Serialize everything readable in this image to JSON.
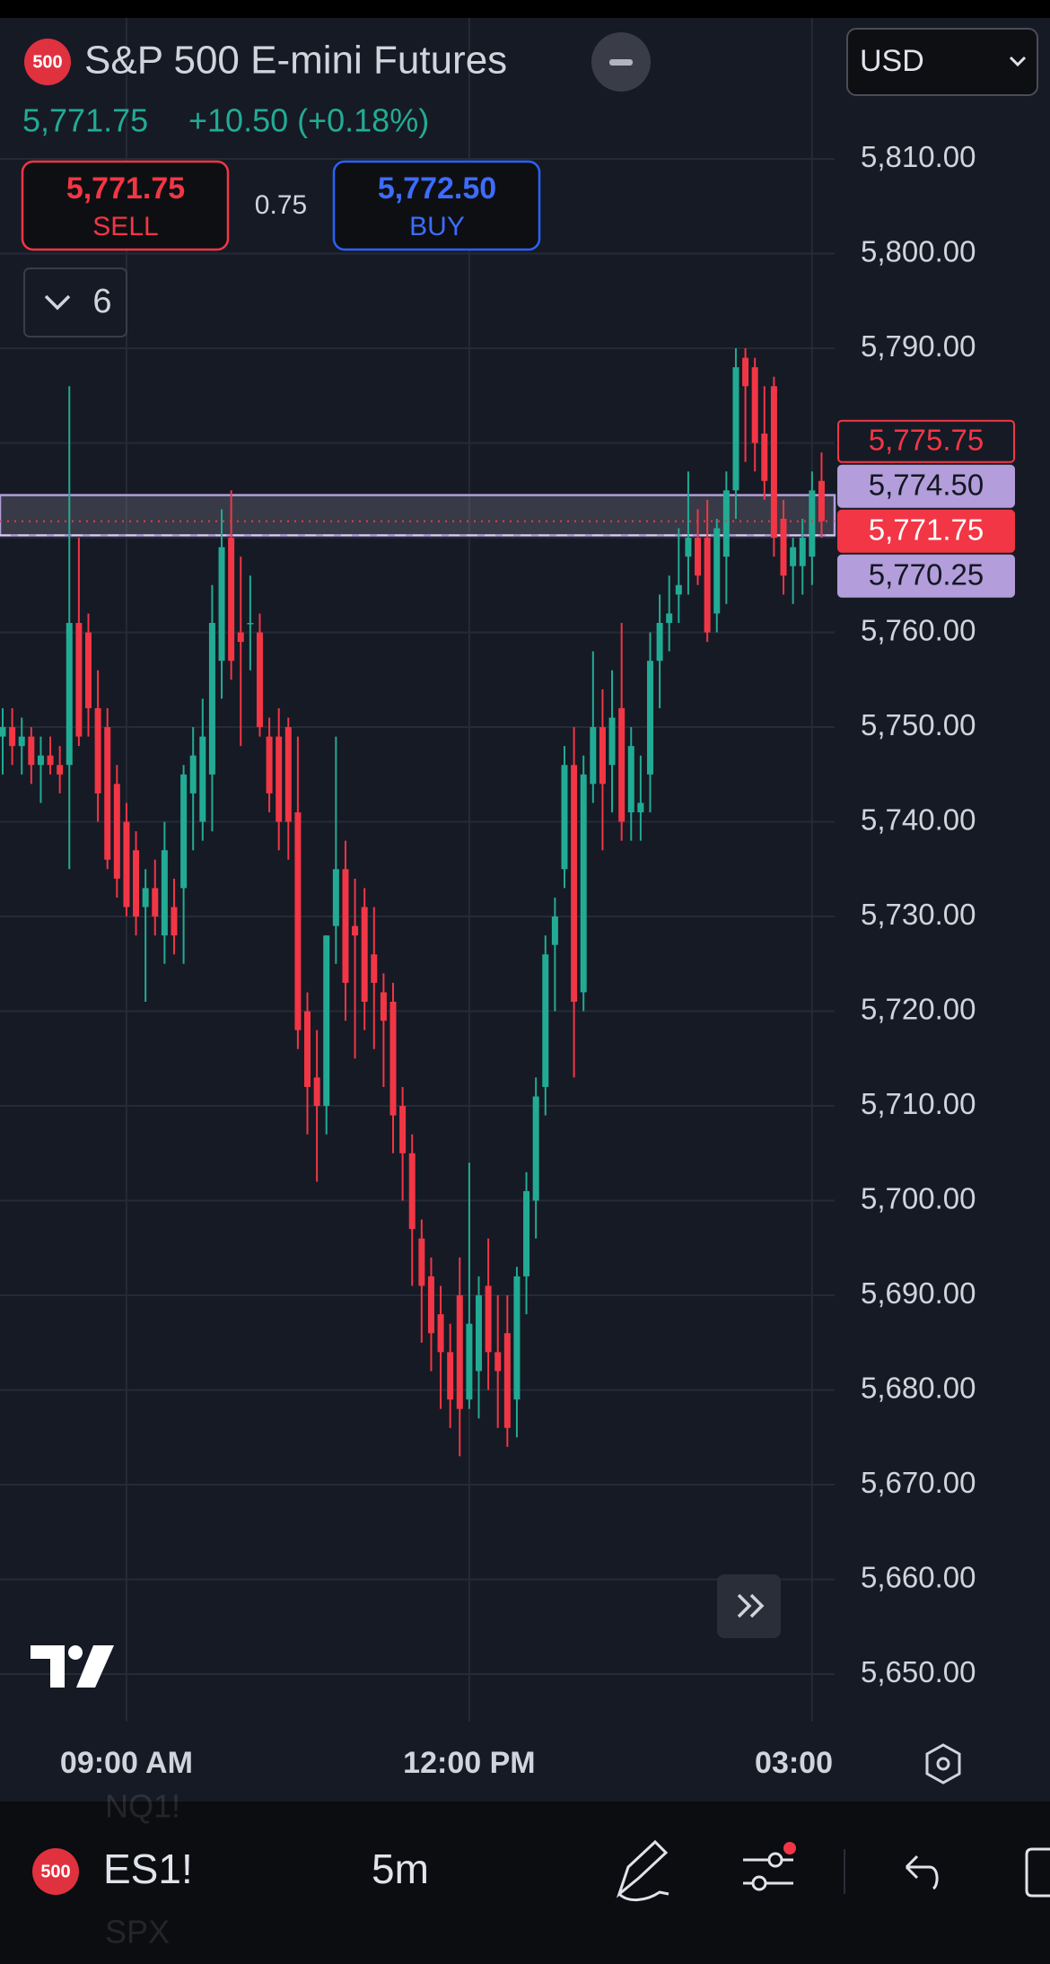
{
  "ui": {
    "symbol_badge": "500",
    "title": "S&P 500 E-mini Futures",
    "last_price": "5,771.75",
    "change": "+10.50 (+0.18%)",
    "currency": "USD",
    "sell_price": "5,771.75",
    "sell_label": "SELL",
    "spread": "0.75",
    "buy_price": "5,772.50",
    "buy_label": "BUY",
    "indicator_count": "6",
    "bottom_badge": "500",
    "ticker": "ES1!",
    "interval": "5m",
    "watchlist_above": "NQ1!",
    "watchlist_below": "SPX"
  },
  "chart_data": {
    "type": "candlestick",
    "up_color": "#22ab94",
    "down_color": "#f23645",
    "grid": true,
    "categories": [
      null,
      null,
      null,
      null,
      null,
      null,
      null,
      null,
      null,
      null,
      null,
      null,
      null,
      "09:00 AM",
      null,
      null,
      null,
      null,
      null,
      null,
      null,
      null,
      null,
      null,
      null,
      null,
      null,
      null,
      null,
      null,
      null,
      null,
      null,
      null,
      null,
      null,
      null,
      null,
      null,
      null,
      null,
      null,
      null,
      null,
      null,
      null,
      null,
      null,
      null,
      "12:00 PM",
      null,
      null,
      null,
      null,
      null,
      null,
      null,
      null,
      null,
      null,
      null,
      null,
      null,
      null,
      null,
      null,
      null,
      null,
      null,
      null,
      null,
      null,
      null,
      null,
      null,
      null,
      null,
      null,
      null,
      null,
      null,
      null,
      null,
      null,
      null,
      "03:00",
      null
    ],
    "ohlc": [
      [
        5749,
        5752,
        5745,
        5750
      ],
      [
        5750,
        5752,
        5746,
        5748
      ],
      [
        5748,
        5751,
        5745,
        5749
      ],
      [
        5749,
        5750,
        5744,
        5746
      ],
      [
        5746,
        5749,
        5742,
        5747
      ],
      [
        5747,
        5749,
        5745,
        5746
      ],
      [
        5746,
        5748,
        5743,
        5745
      ],
      [
        5746,
        5786,
        5735,
        5761
      ],
      [
        5761,
        5770,
        5748,
        5749
      ],
      [
        5760,
        5762,
        5749,
        5752
      ],
      [
        5752,
        5756,
        5740,
        5743
      ],
      [
        5750,
        5752,
        5735,
        5736
      ],
      [
        5744,
        5746,
        5732,
        5734
      ],
      [
        5740,
        5742,
        5730,
        5731
      ],
      [
        5737,
        5739,
        5728,
        5730
      ],
      [
        5731,
        5735,
        5721,
        5733
      ],
      [
        5733,
        5736,
        5728,
        5730
      ],
      [
        5728,
        5740,
        5725,
        5737
      ],
      [
        5731,
        5734,
        5726,
        5728
      ],
      [
        5733,
        5746,
        5725,
        5745
      ],
      [
        5743,
        5750,
        5737,
        5747
      ],
      [
        5740,
        5753,
        5738,
        5749
      ],
      [
        5745,
        5765,
        5739,
        5761
      ],
      [
        5757,
        5773,
        5753,
        5769
      ],
      [
        5770,
        5775,
        5755,
        5757
      ],
      [
        5760,
        5768,
        5748,
        5759
      ],
      [
        5761,
        5766,
        5756,
        5761
      ],
      [
        5760,
        5762,
        5749,
        5750
      ],
      [
        5749,
        5751,
        5741,
        5743
      ],
      [
        5749,
        5752,
        5737,
        5740
      ],
      [
        5750,
        5751,
        5736,
        5740
      ],
      [
        5741,
        5749,
        5716,
        5718
      ],
      [
        5720,
        5722,
        5707,
        5712
      ],
      [
        5713,
        5718,
        5702,
        5710
      ],
      [
        5710,
        5728,
        5707,
        5728
      ],
      [
        5729,
        5749,
        5725,
        5735
      ],
      [
        5735,
        5738,
        5719,
        5723
      ],
      [
        5729,
        5734,
        5715,
        5728
      ],
      [
        5731,
        5733,
        5718,
        5721
      ],
      [
        5726,
        5731,
        5716,
        5723
      ],
      [
        5722,
        5724,
        5712,
        5719
      ],
      [
        5721,
        5723,
        5705,
        5709
      ],
      [
        5710,
        5712,
        5700,
        5705
      ],
      [
        5705,
        5707,
        5691,
        5697
      ],
      [
        5696,
        5698,
        5685,
        5691
      ],
      [
        5692,
        5694,
        5682,
        5686
      ],
      [
        5688,
        5691,
        5678,
        5684
      ],
      [
        5684,
        5687,
        5676,
        5679
      ],
      [
        5690,
        5694,
        5673,
        5678
      ],
      [
        5679,
        5704,
        5678,
        5687
      ],
      [
        5682,
        5692,
        5677,
        5690
      ],
      [
        5691,
        5696,
        5680,
        5684
      ],
      [
        5684,
        5690,
        5676,
        5682
      ],
      [
        5686,
        5690,
        5674,
        5676
      ],
      [
        5679,
        5693,
        5675,
        5692
      ],
      [
        5692,
        5703,
        5688,
        5701
      ],
      [
        5700,
        5713,
        5696,
        5711
      ],
      [
        5712,
        5728,
        5709,
        5726
      ],
      [
        5727,
        5732,
        5720,
        5730
      ],
      [
        5735,
        5748,
        5733,
        5746
      ],
      [
        5746,
        5750,
        5713,
        5721
      ],
      [
        5722,
        5747,
        5720,
        5745
      ],
      [
        5744,
        5758,
        5742,
        5750
      ],
      [
        5750,
        5754,
        5737,
        5744
      ],
      [
        5746,
        5756,
        5741,
        5751
      ],
      [
        5752,
        5761,
        5738,
        5740
      ],
      [
        5741,
        5750,
        5738,
        5748
      ],
      [
        5741,
        5747,
        5738,
        5742
      ],
      [
        5745,
        5760,
        5741,
        5757
      ],
      [
        5757,
        5764,
        5752,
        5761
      ],
      [
        5761,
        5766,
        5758,
        5762
      ],
      [
        5764,
        5771,
        5761,
        5765
      ],
      [
        5768,
        5777,
        5764,
        5770
      ],
      [
        5770,
        5773,
        5765,
        5766
      ],
      [
        5770,
        5774,
        5759,
        5760
      ],
      [
        5762,
        5772,
        5760,
        5771
      ],
      [
        5768,
        5777,
        5763,
        5775
      ],
      [
        5775,
        5790,
        5772,
        5788
      ],
      [
        5789,
        5790,
        5778,
        5786
      ],
      [
        5788,
        5789,
        5777,
        5780
      ],
      [
        5781,
        5786,
        5774,
        5776
      ],
      [
        5786,
        5787,
        5768,
        5770
      ],
      [
        5772,
        5774,
        5764,
        5766
      ],
      [
        5767,
        5770,
        5763,
        5769
      ],
      [
        5767,
        5772,
        5764,
        5770
      ],
      [
        5768,
        5777,
        5765,
        5775
      ],
      [
        5776,
        5779,
        5770,
        5771.75
      ]
    ],
    "ylim": [
      5645,
      5825
    ],
    "yticks": [
      {
        "value": 5650,
        "label": "5,650.00"
      },
      {
        "value": 5660,
        "label": "5,660.00"
      },
      {
        "value": 5670,
        "label": "5,670.00"
      },
      {
        "value": 5680,
        "label": "5,680.00"
      },
      {
        "value": 5690,
        "label": "5,690.00"
      },
      {
        "value": 5700,
        "label": "5,700.00"
      },
      {
        "value": 5710,
        "label": "5,710.00"
      },
      {
        "value": 5720,
        "label": "5,720.00"
      },
      {
        "value": 5730,
        "label": "5,730.00"
      },
      {
        "value": 5740,
        "label": "5,740.00"
      },
      {
        "value": 5750,
        "label": "5,750.00"
      },
      {
        "value": 5760,
        "label": "5,760.00"
      },
      {
        "value": 5770,
        "label": "5,770.00"
      },
      {
        "value": 5780,
        "label": "5,780.00"
      },
      {
        "value": 5790,
        "label": "5,790.00"
      },
      {
        "value": 5800,
        "label": "5,800.00"
      },
      {
        "value": 5810,
        "label": "5,810.00"
      }
    ],
    "price_labels": [
      {
        "value": 5775.75,
        "label": "5,775.75",
        "color": "#f23645",
        "filled": false
      },
      {
        "value": 5774.5,
        "label": "5,774.50",
        "color": "#b39ddb",
        "filled": true
      },
      {
        "value": 5771.75,
        "label": "5,771.75",
        "color": "#f23645",
        "filled": true
      },
      {
        "value": 5770.25,
        "label": "5,770.25",
        "color": "#b39ddb",
        "filled": true
      }
    ]
  }
}
